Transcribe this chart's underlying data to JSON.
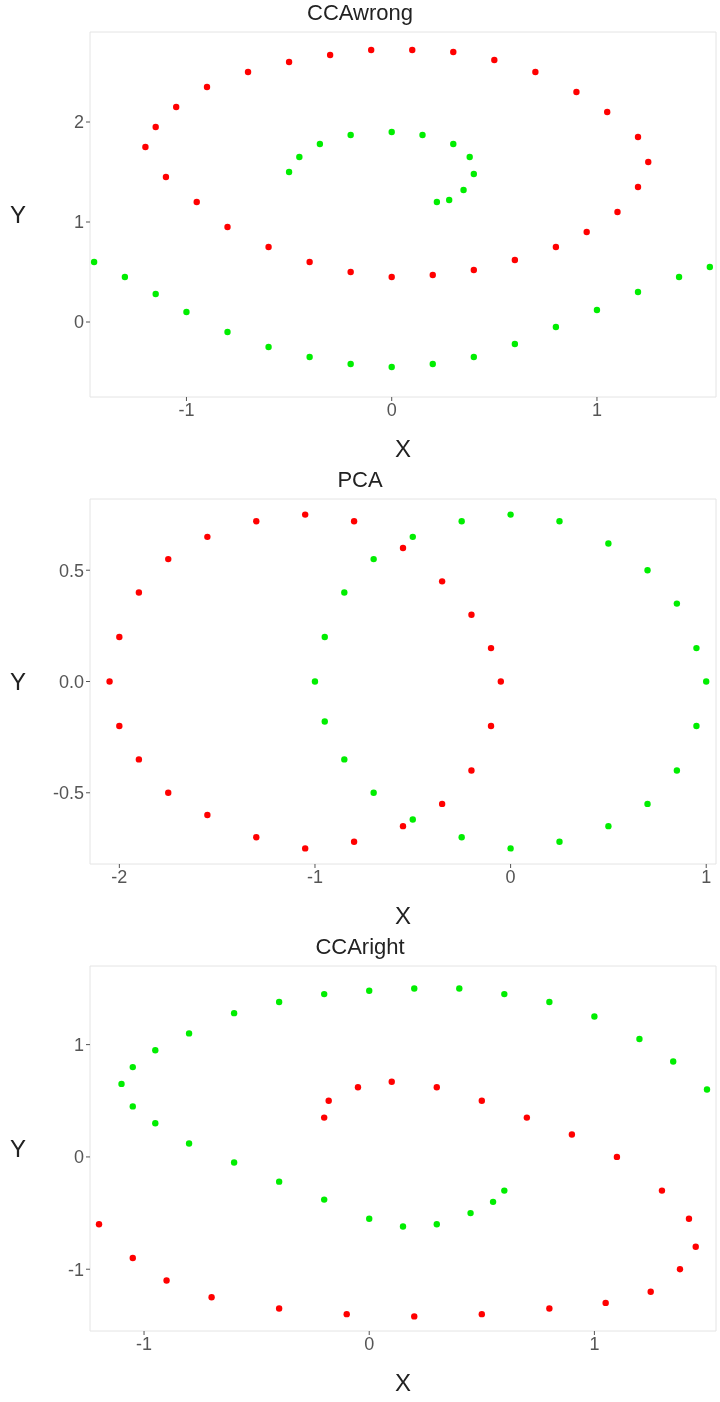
{
  "chart_data": [
    {
      "type": "scatter",
      "title": "CCAwrong",
      "xlabel": "X",
      "ylabel": "Y",
      "xlim": [
        -1.47,
        1.58
      ],
      "ylim": [
        -0.75,
        2.9
      ],
      "xticks": [
        -1,
        0,
        1
      ],
      "yticks": [
        0,
        1,
        2
      ],
      "marker": "circle",
      "grid": false,
      "legend": false,
      "series": [
        {
          "color": "#ff0000",
          "x": [
            -1.2,
            -1.15,
            -1.05,
            -0.9,
            -0.7,
            -0.5,
            -0.3,
            -0.1,
            0.1,
            0.3,
            0.5,
            0.7,
            0.9,
            1.05,
            1.2,
            1.25,
            1.2,
            1.1,
            0.95,
            0.8,
            0.6,
            0.4,
            0.2,
            0,
            -0.2,
            -0.4,
            -0.6,
            -0.8,
            -0.95,
            -1.1
          ],
          "values": [
            1.75,
            1.95,
            2.15,
            2.35,
            2.5,
            2.6,
            2.67,
            2.72,
            2.72,
            2.7,
            2.62,
            2.5,
            2.3,
            2.1,
            1.85,
            1.6,
            1.35,
            1.1,
            0.9,
            0.75,
            0.62,
            0.52,
            0.47,
            0.45,
            0.5,
            0.6,
            0.75,
            0.95,
            1.2,
            1.45
          ]
        },
        {
          "color": "#00ee00",
          "x": [
            -0.5,
            -0.45,
            -0.35,
            -0.2,
            0,
            0.15,
            0.3,
            0.38,
            0.4,
            0.35,
            0.28,
            0.22,
            -1.45,
            -1.3,
            -1.15,
            -1,
            -0.8,
            -0.6,
            -0.4,
            -0.2,
            0,
            0.2,
            0.4,
            0.6,
            0.8,
            1,
            1.2,
            1.4,
            1.55
          ],
          "values": [
            1.5,
            1.65,
            1.78,
            1.87,
            1.9,
            1.87,
            1.78,
            1.65,
            1.48,
            1.32,
            1.22,
            1.2,
            0.6,
            0.45,
            0.28,
            0.1,
            -0.1,
            -0.25,
            -0.35,
            -0.42,
            -0.45,
            -0.42,
            -0.35,
            -0.22,
            -0.05,
            0.12,
            0.3,
            0.45,
            0.55
          ]
        }
      ]
    },
    {
      "type": "scatter",
      "title": "PCA",
      "xlabel": "X",
      "ylabel": "Y",
      "xlim": [
        -2.15,
        1.05
      ],
      "ylim": [
        -0.82,
        0.82
      ],
      "xticks": [
        -2,
        -1,
        0,
        1
      ],
      "yticks": [
        {
          "value": -0.5,
          "label": "-0.5"
        },
        {
          "value": 0,
          "label": "0.0"
        },
        {
          "value": 0.5,
          "label": "0.5"
        }
      ],
      "marker": "circle",
      "grid": false,
      "legend": false,
      "series": [
        {
          "color": "#ff0000",
          "x": [
            -2.05,
            -2,
            -1.9,
            -1.75,
            -1.55,
            -1.3,
            -1.05,
            -0.8,
            -0.55,
            -0.35,
            -0.2,
            -0.1,
            -0.05,
            -0.1,
            -0.2,
            -0.35,
            -0.55,
            -0.8,
            -1.05,
            -1.3,
            -1.55,
            -1.75,
            -1.9,
            -2
          ],
          "values": [
            0,
            0.2,
            0.4,
            0.55,
            0.65,
            0.72,
            0.75,
            0.72,
            0.6,
            0.45,
            0.3,
            0.15,
            0,
            -0.2,
            -0.4,
            -0.55,
            -0.65,
            -0.72,
            -0.75,
            -0.7,
            -0.6,
            -0.5,
            -0.35,
            -0.2
          ]
        },
        {
          "color": "#00ee00",
          "x": [
            -1,
            -0.95,
            -0.85,
            -0.7,
            -0.5,
            -0.25,
            0,
            0.25,
            0.5,
            0.7,
            0.85,
            0.95,
            1,
            0.95,
            0.85,
            0.7,
            0.5,
            0.25,
            0,
            -0.25,
            -0.5,
            -0.7,
            -0.85,
            -0.95
          ],
          "values": [
            0,
            0.2,
            0.4,
            0.55,
            0.65,
            0.72,
            0.75,
            0.72,
            0.62,
            0.5,
            0.35,
            0.15,
            0,
            -0.2,
            -0.4,
            -0.55,
            -0.65,
            -0.72,
            -0.75,
            -0.7,
            -0.62,
            -0.5,
            -0.35,
            -0.18
          ]
        }
      ]
    },
    {
      "type": "scatter",
      "title": "CCAright",
      "xlabel": "X",
      "ylabel": "Y",
      "xlim": [
        -1.24,
        1.54
      ],
      "ylim": [
        -1.55,
        1.7
      ],
      "xticks": [
        -1,
        0,
        1
      ],
      "yticks": [
        -1,
        0,
        1
      ],
      "marker": "circle",
      "grid": false,
      "legend": false,
      "series": [
        {
          "color": "#00ee00",
          "x": [
            1.5,
            1.35,
            1.2,
            1,
            0.8,
            0.6,
            0.4,
            0.2,
            0,
            -0.2,
            -0.4,
            -0.6,
            -0.8,
            -0.95,
            -1.05,
            -1.1,
            -1.05,
            -0.95,
            -0.8,
            -0.6,
            -0.4,
            -0.2,
            0,
            0.15,
            0.3,
            0.45,
            0.55,
            0.6
          ],
          "values": [
            0.6,
            0.85,
            1.05,
            1.25,
            1.38,
            1.45,
            1.5,
            1.5,
            1.48,
            1.45,
            1.38,
            1.28,
            1.1,
            0.95,
            0.8,
            0.65,
            0.45,
            0.3,
            0.12,
            -0.05,
            -0.22,
            -0.38,
            -0.55,
            -0.62,
            -0.6,
            -0.5,
            -0.4,
            -0.3
          ]
        },
        {
          "color": "#ff0000",
          "x": [
            -0.2,
            -0.18,
            -0.05,
            0.1,
            0.3,
            0.5,
            0.7,
            0.9,
            1.1,
            1.3,
            1.42,
            1.45,
            1.38,
            1.25,
            1.05,
            0.8,
            0.5,
            0.2,
            -0.1,
            -0.4,
            -0.7,
            -0.9,
            -1.05,
            -1.2
          ],
          "values": [
            0.35,
            0.5,
            0.62,
            0.67,
            0.62,
            0.5,
            0.35,
            0.2,
            0,
            -0.3,
            -0.55,
            -0.8,
            -1.0,
            -1.2,
            -1.3,
            -1.35,
            -1.4,
            -1.42,
            -1.4,
            -1.35,
            -1.25,
            -1.1,
            -0.9,
            -0.6
          ]
        }
      ]
    }
  ]
}
